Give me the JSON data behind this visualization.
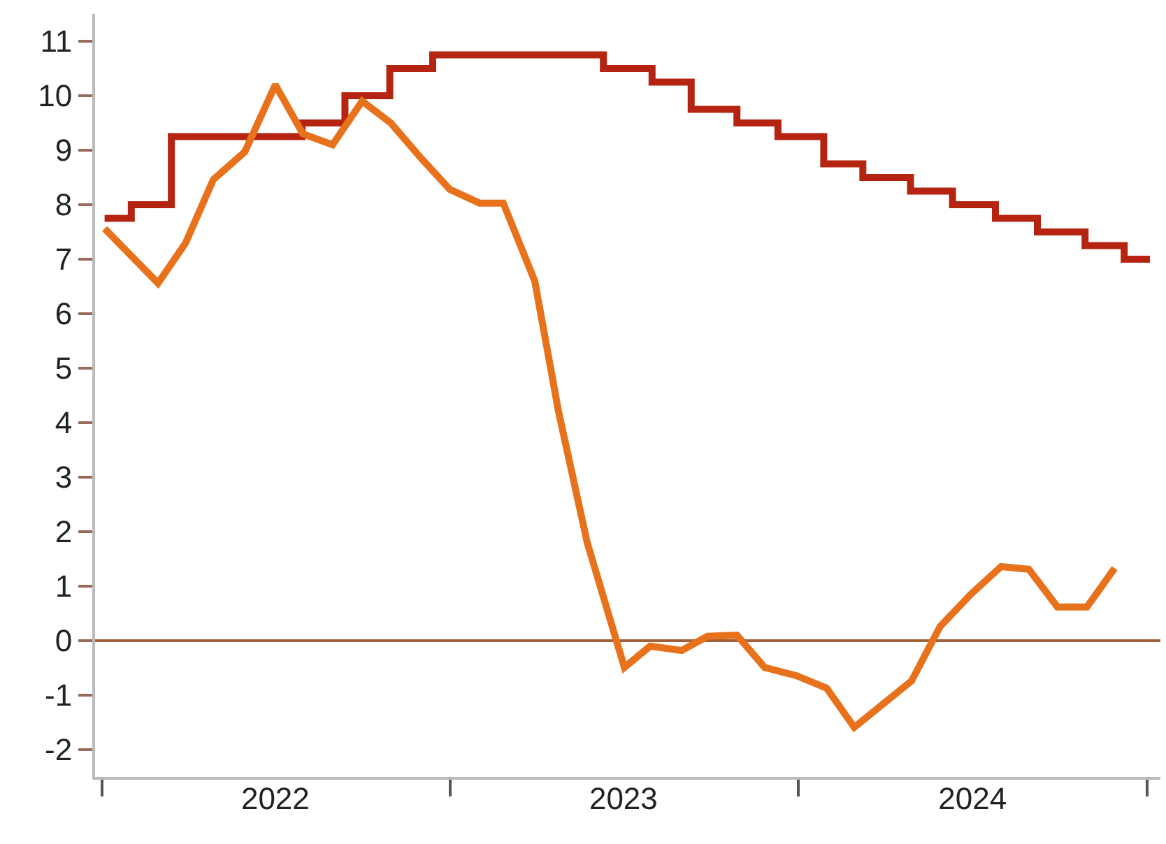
{
  "chart_data": {
    "type": "line",
    "xlim": [
      "2021-12-25",
      "2025-01-15"
    ],
    "xticks": [
      {
        "value": "2022-01-01",
        "label": null
      },
      {
        "value": "2023-01-01",
        "label": null
      },
      {
        "value": "2024-01-01",
        "label": null
      },
      {
        "value": "2025-01-01",
        "label": null
      },
      {
        "value": "2022-07-02",
        "label": "2022"
      },
      {
        "value": "2023-07-02",
        "label": "2023"
      },
      {
        "value": "2024-07-02",
        "label": "2024"
      }
    ],
    "ylim": [
      -2.5,
      11.5
    ],
    "yticks": [
      -2,
      -1,
      0,
      1,
      2,
      3,
      4,
      5,
      6,
      7,
      8,
      9,
      10,
      11
    ],
    "grid": false,
    "ref_lines": [
      {
        "axis": "y",
        "value": 0,
        "color": "#a0603a"
      }
    ],
    "series": [
      {
        "type": "step",
        "color": "#b52410",
        "x": [
          "2022-01-04",
          "2022-02-01",
          "2022-03-15",
          "2022-07-30",
          "2022-09-13",
          "2022-10-30",
          "2022-12-14",
          "2023-06-11",
          "2023-08-01",
          "2023-09-11",
          "2023-10-29",
          "2023-12-11",
          "2024-01-28",
          "2024-03-09",
          "2024-04-28",
          "2024-06-11",
          "2024-07-26",
          "2024-09-08",
          "2024-10-28",
          "2024-12-08",
          "2025-01-04"
        ],
        "values": [
          7.75,
          8.0,
          9.25,
          9.5,
          10.0,
          10.5,
          10.75,
          10.5,
          10.25,
          9.75,
          9.5,
          9.25,
          8.75,
          8.5,
          8.25,
          8.0,
          7.75,
          7.5,
          7.25,
          7.0,
          7.0
        ]
      },
      {
        "color": "#e8711c",
        "x": [
          "2022-01-04",
          "2022-03-01",
          "2022-03-30",
          "2022-04-28",
          "2022-05-31",
          "2022-07-02",
          "2022-07-31",
          "2022-08-31",
          "2022-10-01",
          "2022-10-31",
          "2022-12-02",
          "2023-01-01",
          "2023-02-01",
          "2023-02-26",
          "2023-03-31",
          "2023-04-25",
          "2023-05-25",
          "2023-07-03",
          "2023-07-30",
          "2023-09-01",
          "2023-09-28",
          "2023-10-29",
          "2023-11-27",
          "2023-12-30",
          "2024-01-31",
          "2024-02-29",
          "2024-03-31",
          "2024-04-29",
          "2024-05-29",
          "2024-06-30",
          "2024-08-01",
          "2024-08-30",
          "2024-09-29",
          "2024-10-30",
          "2024-11-28"
        ],
        "values": [
          7.56,
          6.56,
          7.3,
          8.46,
          8.97,
          10.2,
          9.3,
          9.1,
          9.9,
          9.5,
          8.85,
          8.28,
          8.03,
          8.03,
          6.6,
          4.2,
          1.8,
          -0.49,
          -0.1,
          -0.18,
          0.08,
          0.1,
          -0.49,
          -0.64,
          -0.87,
          -1.59,
          -1.15,
          -0.74,
          0.26,
          0.85,
          1.36,
          1.31,
          0.62,
          0.62,
          1.33
        ]
      }
    ]
  }
}
